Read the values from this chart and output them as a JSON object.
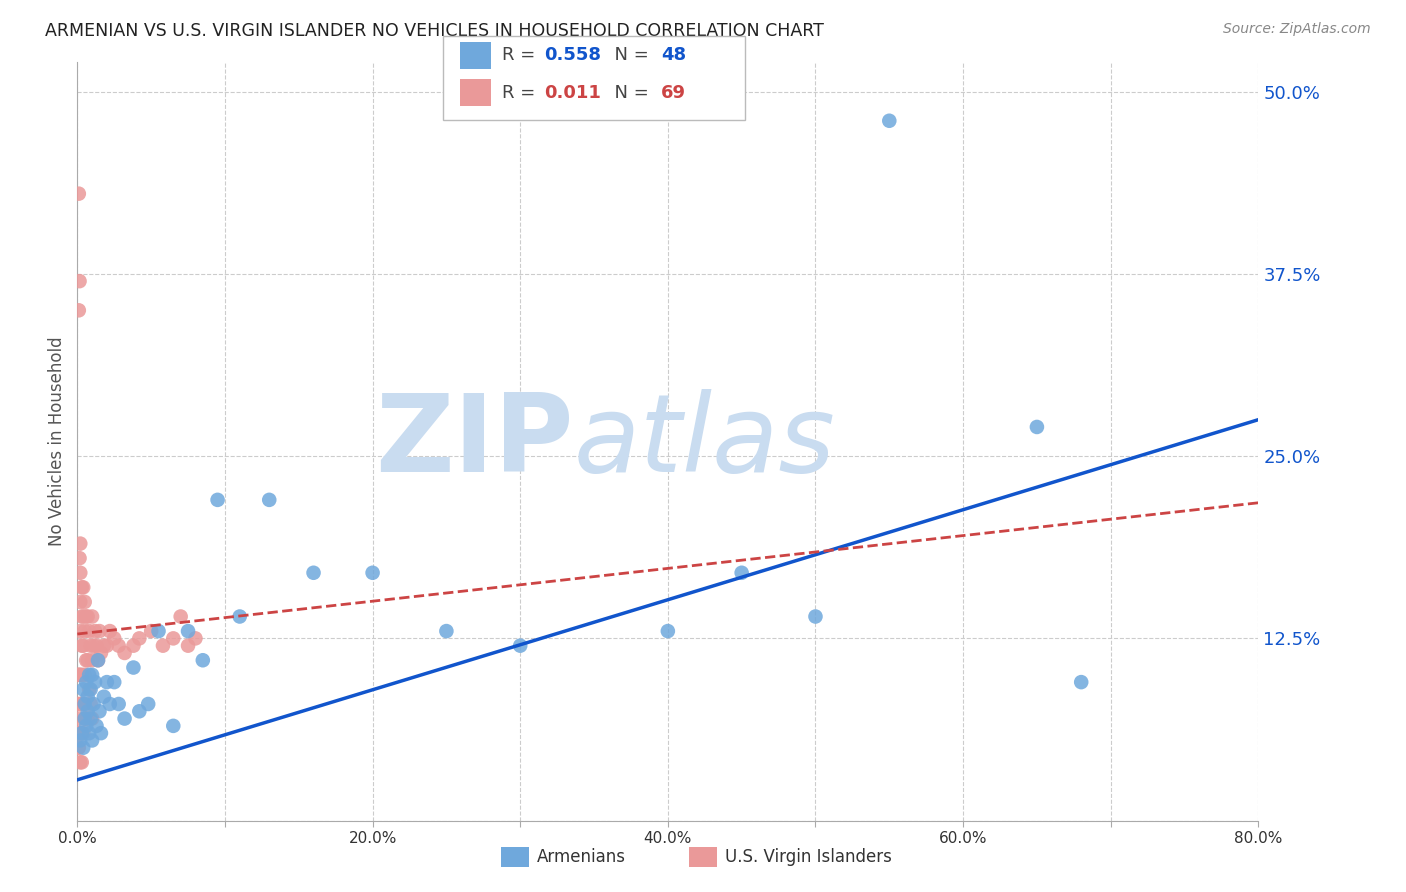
{
  "title": "ARMENIAN VS U.S. VIRGIN ISLANDER NO VEHICLES IN HOUSEHOLD CORRELATION CHART",
  "source": "Source: ZipAtlas.com",
  "ylabel": "No Vehicles in Household",
  "xlim": [
    0.0,
    0.8
  ],
  "ylim": [
    0.0,
    0.52
  ],
  "armenian_R": 0.558,
  "armenian_N": 48,
  "virgin_R": 0.011,
  "virgin_N": 69,
  "blue_color": "#6FA8DC",
  "pink_color": "#EA9999",
  "blue_line_color": "#1155CC",
  "pink_line_color": "#CC4444",
  "watermark_zip_color": "#C9DCF0",
  "watermark_atlas_color": "#C9DCF0",
  "background_color": "#FFFFFF",
  "armenian_x": [
    0.002,
    0.003,
    0.004,
    0.004,
    0.005,
    0.005,
    0.006,
    0.006,
    0.007,
    0.007,
    0.008,
    0.008,
    0.009,
    0.009,
    0.01,
    0.01,
    0.011,
    0.012,
    0.013,
    0.014,
    0.015,
    0.016,
    0.018,
    0.02,
    0.022,
    0.025,
    0.028,
    0.032,
    0.038,
    0.042,
    0.048,
    0.055,
    0.065,
    0.075,
    0.085,
    0.095,
    0.11,
    0.13,
    0.16,
    0.2,
    0.25,
    0.3,
    0.4,
    0.45,
    0.5,
    0.55,
    0.65,
    0.68
  ],
  "armenian_y": [
    0.055,
    0.06,
    0.05,
    0.09,
    0.07,
    0.08,
    0.065,
    0.095,
    0.075,
    0.085,
    0.06,
    0.1,
    0.07,
    0.09,
    0.055,
    0.1,
    0.08,
    0.095,
    0.065,
    0.11,
    0.075,
    0.06,
    0.085,
    0.095,
    0.08,
    0.095,
    0.08,
    0.07,
    0.105,
    0.075,
    0.08,
    0.13,
    0.065,
    0.13,
    0.11,
    0.22,
    0.14,
    0.22,
    0.17,
    0.17,
    0.13,
    0.12,
    0.13,
    0.17,
    0.14,
    0.48,
    0.27,
    0.095
  ],
  "virgin_x": [
    0.0004,
    0.0005,
    0.0006,
    0.0008,
    0.001,
    0.001,
    0.001,
    0.001,
    0.001,
    0.0015,
    0.002,
    0.002,
    0.002,
    0.002,
    0.002,
    0.002,
    0.002,
    0.003,
    0.003,
    0.003,
    0.003,
    0.003,
    0.003,
    0.003,
    0.004,
    0.004,
    0.004,
    0.004,
    0.004,
    0.005,
    0.005,
    0.005,
    0.005,
    0.006,
    0.006,
    0.006,
    0.007,
    0.007,
    0.007,
    0.008,
    0.008,
    0.009,
    0.009,
    0.01,
    0.01,
    0.01,
    0.011,
    0.012,
    0.013,
    0.014,
    0.015,
    0.016,
    0.018,
    0.02,
    0.022,
    0.025,
    0.028,
    0.032,
    0.038,
    0.042,
    0.05,
    0.058,
    0.065,
    0.07,
    0.075,
    0.08,
    0.001,
    0.0015,
    0.002
  ],
  "virgin_y": [
    0.1,
    0.05,
    0.08,
    0.06,
    0.43,
    0.1,
    0.07,
    0.06,
    0.05,
    0.37,
    0.19,
    0.17,
    0.15,
    0.13,
    0.1,
    0.08,
    0.06,
    0.16,
    0.14,
    0.12,
    0.1,
    0.08,
    0.06,
    0.04,
    0.16,
    0.14,
    0.12,
    0.08,
    0.06,
    0.15,
    0.13,
    0.1,
    0.07,
    0.14,
    0.11,
    0.07,
    0.14,
    0.11,
    0.07,
    0.13,
    0.09,
    0.12,
    0.08,
    0.14,
    0.11,
    0.07,
    0.12,
    0.13,
    0.12,
    0.11,
    0.13,
    0.115,
    0.12,
    0.12,
    0.13,
    0.125,
    0.12,
    0.115,
    0.12,
    0.125,
    0.13,
    0.12,
    0.125,
    0.14,
    0.12,
    0.125,
    0.35,
    0.18,
    0.04
  ],
  "blue_trend_x0": 0.0,
  "blue_trend_y0": 0.028,
  "blue_trend_x1": 0.8,
  "blue_trend_y1": 0.275,
  "pink_trend_x0": 0.0,
  "pink_trend_y0": 0.128,
  "pink_trend_x1": 0.8,
  "pink_trend_y1": 0.218
}
